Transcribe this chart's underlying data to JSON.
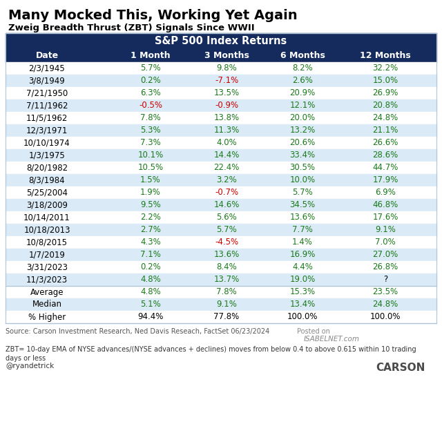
{
  "title": "Many Mocked This, Working Yet Again",
  "subtitle": "Zweig Breadth Thrust (ZBT) Signals Since WWII",
  "header_group": "S&P 500 Index Returns",
  "columns": [
    "Date",
    "1 Month",
    "3 Months",
    "6 Months",
    "12 Months"
  ],
  "rows": [
    [
      "2/3/1945",
      "5.7%",
      "9.8%",
      "8.2%",
      "32.2%"
    ],
    [
      "3/8/1949",
      "0.2%",
      "-7.1%",
      "2.6%",
      "15.0%"
    ],
    [
      "7/21/1950",
      "6.3%",
      "13.5%",
      "20.9%",
      "26.9%"
    ],
    [
      "7/11/1962",
      "-0.5%",
      "-0.9%",
      "12.1%",
      "20.8%"
    ],
    [
      "11/5/1962",
      "7.8%",
      "13.8%",
      "20.0%",
      "24.8%"
    ],
    [
      "12/3/1971",
      "5.3%",
      "11.3%",
      "13.2%",
      "21.1%"
    ],
    [
      "10/10/1974",
      "7.3%",
      "4.0%",
      "20.6%",
      "26.6%"
    ],
    [
      "1/3/1975",
      "10.1%",
      "14.4%",
      "33.4%",
      "28.6%"
    ],
    [
      "8/20/1982",
      "10.5%",
      "22.4%",
      "30.5%",
      "44.7%"
    ],
    [
      "8/3/1984",
      "1.5%",
      "3.2%",
      "10.0%",
      "17.9%"
    ],
    [
      "5/25/2004",
      "1.9%",
      "-0.7%",
      "5.7%",
      "6.9%"
    ],
    [
      "3/18/2009",
      "9.5%",
      "14.6%",
      "34.5%",
      "46.8%"
    ],
    [
      "10/14/2011",
      "2.2%",
      "5.6%",
      "13.6%",
      "17.6%"
    ],
    [
      "10/18/2013",
      "2.7%",
      "5.7%",
      "7.7%",
      "9.1%"
    ],
    [
      "10/8/2015",
      "4.3%",
      "-4.5%",
      "1.4%",
      "7.0%"
    ],
    [
      "1/7/2019",
      "7.1%",
      "13.6%",
      "16.9%",
      "27.0%"
    ],
    [
      "3/31/2023",
      "0.2%",
      "8.4%",
      "4.4%",
      "26.8%"
    ],
    [
      "11/3/2023",
      "4.8%",
      "13.7%",
      "19.0%",
      "?"
    ]
  ],
  "summary_rows": [
    [
      "Average",
      "4.8%",
      "7.8%",
      "15.3%",
      "23.5%"
    ],
    [
      "Median",
      "5.1%",
      "9.1%",
      "13.4%",
      "24.8%"
    ],
    [
      "% Higher",
      "94.4%",
      "77.8%",
      "100.0%",
      "100.0%"
    ]
  ],
  "source_text": "Source: Carson Investment Research, Ned Davis Reseach, FactSet 06/23/2024",
  "posted_text": "Posted on",
  "isabelnet_text": "ISABELNET.com",
  "zbt_note": "ZBT= 10-day EMA of NYSE advances/(NYSE advances + declines) moves from below 0.4 to above 0.615 within 10 trading\ndays or less",
  "twitter_handle": "@ryandetrick",
  "header_bg": "#152b5e",
  "header_text_color": "#ffffff",
  "alt_row_bg": "#daeaf6",
  "white_row_bg": "#ffffff",
  "positive_color": "#1a7a1a",
  "negative_color": "#cc0000",
  "pct_higher_color": "#000000",
  "date_color": "#000000",
  "summary_label_color": "#000000",
  "border_color": "#b0c4d8"
}
